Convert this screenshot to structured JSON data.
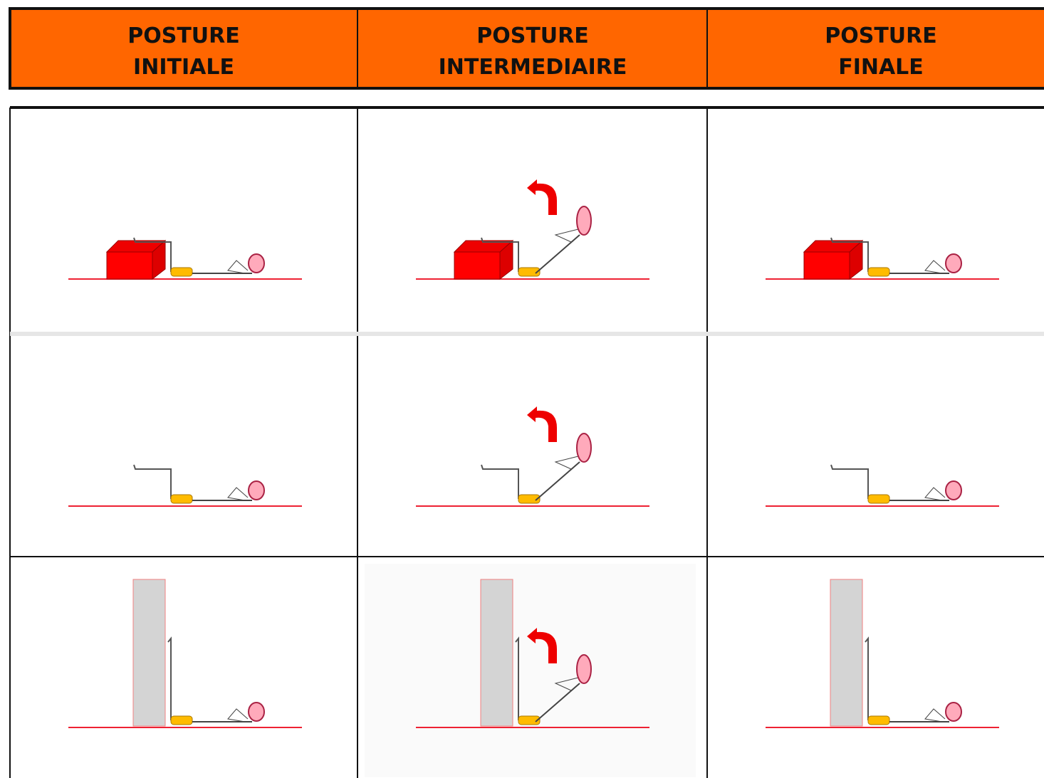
{
  "header": {
    "columns": [
      [
        "POSTURE",
        "INITIALE"
      ],
      [
        "POSTURE",
        "INTERMEDIAIRE"
      ],
      [
        "POSTURE",
        "FINALE"
      ]
    ]
  }
}
